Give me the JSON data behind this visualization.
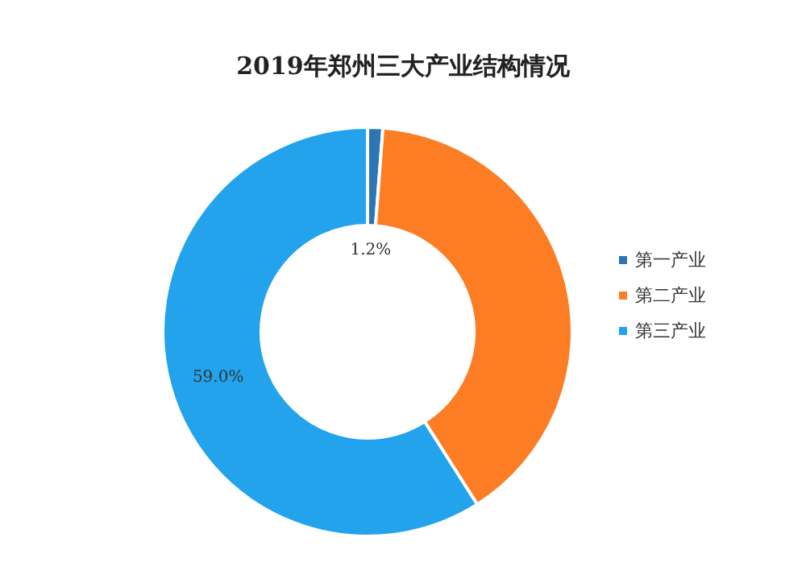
{
  "chart_data": {
    "type": "donut",
    "title": "2019年郑州三大产业结构情况",
    "categories": [
      "第一产业",
      "第二产业",
      "第三产业"
    ],
    "values": [
      1.2,
      39.8,
      59.0
    ],
    "colors": [
      "#2e75b6",
      "#fd7d25",
      "#22a3ec"
    ],
    "value_labels": [
      "1.2%",
      null,
      "59.0%"
    ],
    "legend": "right"
  }
}
